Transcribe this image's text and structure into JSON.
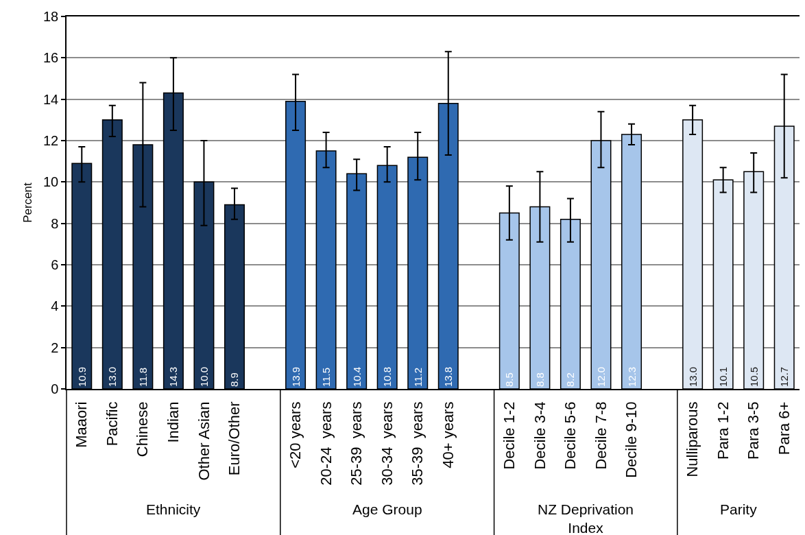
{
  "chart_data": {
    "type": "bar",
    "ylabel": "Percent",
    "categories": [
      "Maaori",
      "Pacific",
      "Chinese",
      "Indian",
      "Other Asian",
      "Euro/Other",
      null,
      "<20 years",
      "20-24  years",
      "25-39  years",
      "30-34  years",
      "35-39  years",
      "40+ years",
      null,
      "Decile 1-2",
      "Decile 3-4",
      "Decile 5-6",
      "Decile 7-8",
      "Decile 9-10",
      null,
      "Nulliparous",
      "Para 1-2",
      "Para 3-5",
      "Para 6+"
    ],
    "values": [
      10.9,
      13.0,
      11.8,
      14.3,
      10.0,
      8.9,
      null,
      13.9,
      11.5,
      10.4,
      10.8,
      11.2,
      13.8,
      null,
      8.5,
      8.8,
      8.2,
      12.0,
      12.3,
      null,
      13.0,
      10.1,
      10.5,
      12.7
    ],
    "value_labels": [
      "10.9",
      "13.0",
      "11.8",
      "14.3",
      "10.0",
      "8.9",
      null,
      "13.9",
      "11.5",
      "10.4",
      "10.8",
      "11.2",
      "13.8",
      null,
      "8.5",
      "8.8",
      "8.2",
      "12.0",
      "12.3",
      null,
      "13.0",
      "10.1",
      "10.5",
      "12.7"
    ],
    "errors": [
      [
        10.0,
        11.7
      ],
      [
        12.2,
        13.7
      ],
      [
        8.8,
        14.8
      ],
      [
        12.5,
        16.0
      ],
      [
        7.9,
        12.0
      ],
      [
        8.2,
        9.7
      ],
      null,
      [
        12.5,
        15.2
      ],
      [
        10.7,
        12.4
      ],
      [
        9.6,
        11.1
      ],
      [
        10.0,
        11.7
      ],
      [
        10.1,
        12.4
      ],
      [
        11.3,
        16.3
      ],
      null,
      [
        7.2,
        9.8
      ],
      [
        7.1,
        10.5
      ],
      [
        7.1,
        9.2
      ],
      [
        10.7,
        13.4
      ],
      [
        11.8,
        12.8
      ],
      null,
      [
        12.3,
        13.7
      ],
      [
        9.5,
        10.7
      ],
      [
        9.5,
        11.4
      ],
      [
        10.2,
        15.2
      ]
    ],
    "colors": [
      "#1a375c",
      "#1a375c",
      "#1a375c",
      "#1a375c",
      "#1a375c",
      "#1a375c",
      null,
      "#2f6ab1",
      "#2f6ab1",
      "#2f6ab1",
      "#2f6ab1",
      "#2f6ab1",
      "#2f6ab1",
      null,
      "#a6c5ea",
      "#a6c5ea",
      "#a6c5ea",
      "#a6c5ea",
      "#a6c5ea",
      null,
      "#dde7f3",
      "#dde7f3",
      "#dde7f3",
      "#dde7f3"
    ],
    "ylim": [
      0,
      18
    ],
    "yticks": [
      0,
      2,
      4,
      6,
      8,
      10,
      12,
      14,
      16,
      18
    ],
    "grid": "y",
    "annotations": [
      "Ethnicity",
      "Age Group",
      "NZ Deprivation Index",
      "Parity"
    ]
  }
}
